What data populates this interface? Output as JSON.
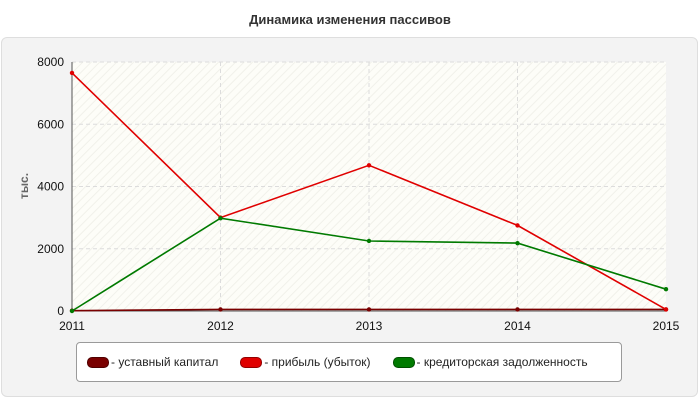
{
  "chart_data": {
    "type": "line",
    "title": "Динамика изменения пассивов",
    "ylabel": "тыс.",
    "xlabel": "",
    "x": [
      "2011",
      "2012",
      "2013",
      "2014",
      "2015"
    ],
    "ylim": [
      0,
      8000
    ],
    "yticks": [
      "0",
      "2000",
      "4000",
      "6000",
      "8000"
    ],
    "grid": true,
    "legend_position": "bottom",
    "series": [
      {
        "name": "- уставный капитал",
        "color": "#7a0000",
        "values": [
          10,
          50,
          50,
          50,
          50
        ]
      },
      {
        "name": "- прибыль (убыток)",
        "color": "#e00000",
        "values": [
          7650,
          3000,
          4680,
          2750,
          50
        ]
      },
      {
        "name": "- кредиторская задолженность",
        "color": "#007a00",
        "values": [
          0,
          2980,
          2250,
          2180,
          700
        ]
      }
    ]
  }
}
